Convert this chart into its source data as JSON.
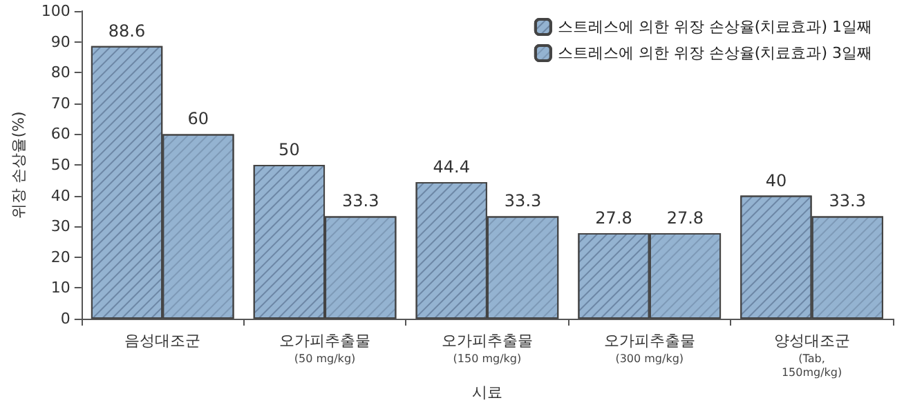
{
  "chart_data": {
    "type": "bar",
    "xlabel": "시료",
    "ylabel": "위장 손상율(%)",
    "categories": [
      "음성대조군",
      "오가피추출물\n(50 mg/kg)",
      "오가피추출물\n(150 mg/kg)",
      "오가피추출물\n(300 mg/kg)",
      "양성대조군\n(Tab,\n150mg/kg)"
    ],
    "series": [
      {
        "name": "스트레스에 의한 위장 손상율(치료효과) 1일째",
        "color": "#94b3d1",
        "values": [
          88.6,
          50,
          44.4,
          27.8,
          40
        ]
      },
      {
        "name": "스트레스에 의한 위장 손상율(치료효과) 3일째",
        "color": "#94b3d1",
        "values": [
          60,
          33.3,
          33.3,
          27.8,
          33.3
        ]
      }
    ],
    "ylim": [
      0,
      100
    ],
    "yticks": [
      0,
      10,
      20,
      30,
      40,
      50,
      60,
      70,
      80,
      90,
      100
    ],
    "grid": false,
    "legend": "top right",
    "data_labels": true
  }
}
